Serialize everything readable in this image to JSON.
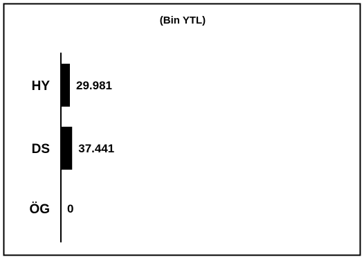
{
  "chart_data": {
    "type": "bar",
    "orientation": "horizontal",
    "unit_label": "(Bin YTL)",
    "categories": [
      "HY",
      "DS",
      "ÖG"
    ],
    "values": [
      29981,
      37441,
      0
    ],
    "value_labels": [
      "29.981",
      "37.441",
      "0"
    ],
    "bar_color": "#000000",
    "grid": false,
    "legend": "none"
  }
}
